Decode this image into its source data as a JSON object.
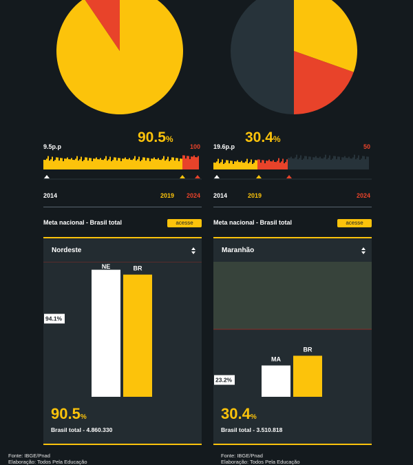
{
  "panels": [
    {
      "id": "left",
      "pie": {
        "percent": 90.5,
        "main_color": "#fcc30b",
        "rest_color": "#e8432a"
      },
      "points_label": "9.5p.p",
      "percent_value": "90.5",
      "percent_unit": "%",
      "goal_value": "100",
      "years": {
        "start": "2014",
        "mid": "2019",
        "end": "2024"
      },
      "meta_label": "Meta nacional - Brasil total",
      "access_label": "acesse",
      "region": {
        "name": "Nordeste",
        "total_value": "90.5",
        "total_unit": "%",
        "total_label": "Brasil total - 4.860.330"
      }
    },
    {
      "id": "right",
      "pie": {
        "percent": 30.4,
        "main_color": "#fcc30b",
        "rest_color": "#e8432a",
        "remaining_color": "#27333a"
      },
      "points_label": "19.6p.p",
      "percent_value": "30.4",
      "percent_unit": "%",
      "goal_value": "50",
      "years": {
        "start": "2014",
        "mid": "2019",
        "end": "2024"
      },
      "meta_label": "Meta nacional - Brasil total",
      "access_label": "acesse",
      "region": {
        "name": "Maranhão",
        "total_value": "30.4",
        "total_unit": "%",
        "total_label": "Brasil total - 3.510.818"
      }
    }
  ],
  "chart_data": [
    {
      "type": "pie",
      "slices": [
        {
          "value": 90.5,
          "color": "#fcc30b"
        },
        {
          "value": 9.5,
          "color": "#e8432a"
        }
      ]
    },
    {
      "type": "pie",
      "slices": [
        {
          "value": 30.4,
          "color": "#fcc30b"
        },
        {
          "value": 19.6,
          "color": "#e8432a"
        },
        {
          "value": 50.0,
          "color": "#27333a"
        }
      ]
    },
    {
      "type": "bar",
      "categories": [
        "NE",
        "BR"
      ],
      "values": [
        94.1,
        90.5
      ],
      "colors": [
        "#ffffff",
        "#fcc30b"
      ],
      "ylim": [
        0,
        100
      ],
      "goal": 100,
      "region_label": "94.1%"
    },
    {
      "type": "bar",
      "categories": [
        "MA",
        "BR"
      ],
      "values": [
        23.2,
        30.4
      ],
      "colors": [
        "#ffffff",
        "#fcc30b"
      ],
      "ylim": [
        0,
        100
      ],
      "goal": 50,
      "region_label": "23.2%"
    }
  ],
  "footer": {
    "source": "Fonte: IBGE/Pnad",
    "credits": "Elaboração: Todos Pela Educação"
  }
}
